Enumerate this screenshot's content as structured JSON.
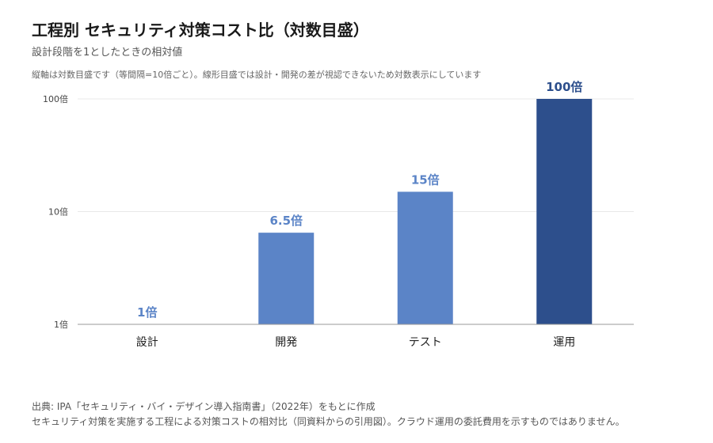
{
  "title": "工程別 セキュリティ対策コスト比（対数目盛）",
  "subtitle": "設計段階を1としたときの相対値",
  "note": "縦軸は対数目盛です（等間隔=10倍ごと）。線形目盛では設計・開発の差が視認できないため対数表示にしています",
  "source": "出典: IPA「セキュリティ・バイ・デザイン導入指南書」（2022年）をもとに作成",
  "caption": "セキュリティ対策を実施する工程による対策コストの相対比（同資料からの引用図）。クラウド運用の委託費用を示すものではありません。",
  "colors": {
    "bar": "#5b84c7",
    "bar_highlight": "#2d4f8c",
    "label": "#5b84c7",
    "label_highlight": "#2d4f8c",
    "grid": "#e8e8e8",
    "axis": "#999999"
  },
  "chart_data": {
    "type": "bar",
    "yscale": "log",
    "ylim": [
      1,
      100
    ],
    "yticks": [
      1,
      10,
      100
    ],
    "ytick_labels": [
      "1倍",
      "10倍",
      "100倍"
    ],
    "categories": [
      "設計",
      "開発",
      "テスト",
      "運用"
    ],
    "values": [
      1,
      6.5,
      15,
      100
    ],
    "data_labels": [
      "1倍",
      "6.5倍",
      "15倍",
      "100倍"
    ],
    "highlight_index": 3,
    "grid": true
  }
}
